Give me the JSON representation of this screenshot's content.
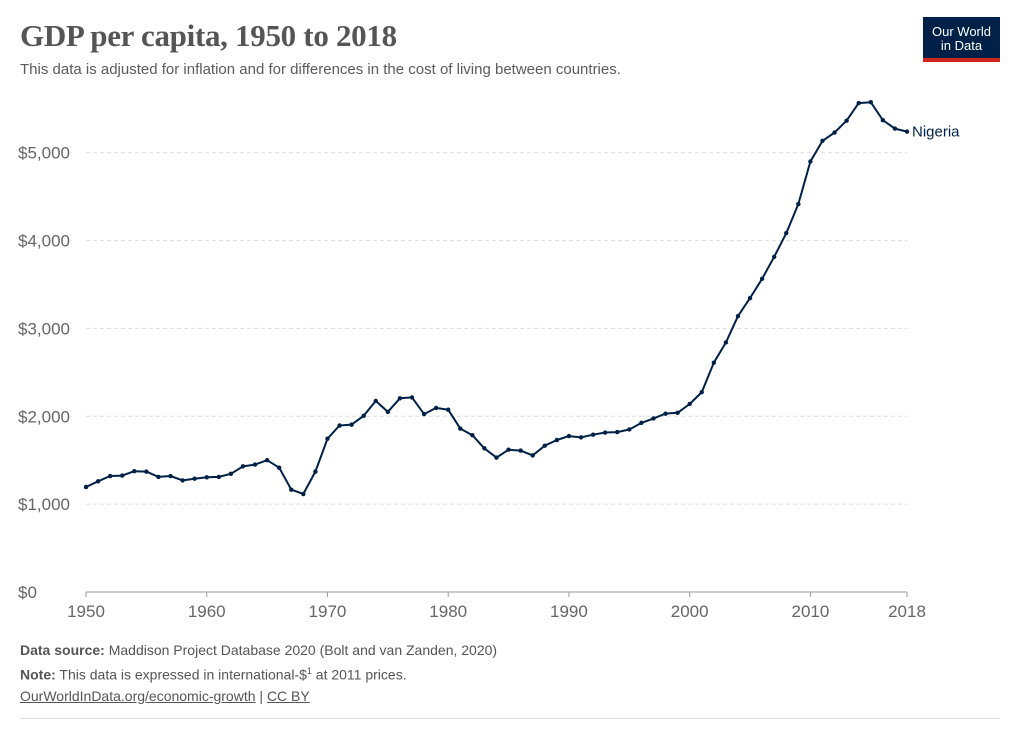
{
  "header": {
    "title": "GDP per capita, 1950 to 2018",
    "subtitle": "This data is adjusted for inflation and for differences in the cost of living between countries."
  },
  "logo": {
    "line1": "Our World",
    "line2": "in Data"
  },
  "footer": {
    "source_label": "Data source:",
    "source_text": "Maddison Project Database 2020 (Bolt and van Zanden, 2020)",
    "note_label": "Note:",
    "note_text_before": "This data is expressed in international-$",
    "note_sup": "1",
    "note_text_after": " at 2011 prices.",
    "link_text": "OurWorldInData.org/economic-growth",
    "separator": "|",
    "license_text": "CC BY"
  },
  "colors": {
    "line": "#002147",
    "grid": "#dddddd",
    "logo_bg": "#002147",
    "logo_accent": "#ce261e"
  },
  "chart_data": {
    "type": "line",
    "title": "GDP per capita, 1950 to 2018",
    "xlim": [
      1950,
      2018
    ],
    "ylim": [
      0,
      5600
    ],
    "x_ticks": [
      1950,
      1960,
      1970,
      1980,
      1990,
      2000,
      2010,
      2018
    ],
    "y_ticks": [
      0,
      1000,
      2000,
      3000,
      4000,
      5000
    ],
    "y_tick_labels": [
      "$0",
      "$1,000",
      "$2,000",
      "$3,000",
      "$4,000",
      "$5,000"
    ],
    "grid": "horizontal dashed",
    "series": [
      {
        "name": "Nigeria",
        "x": [
          1950,
          1951,
          1952,
          1953,
          1954,
          1955,
          1956,
          1957,
          1958,
          1959,
          1960,
          1961,
          1962,
          1963,
          1964,
          1965,
          1966,
          1967,
          1968,
          1969,
          1970,
          1971,
          1972,
          1973,
          1974,
          1975,
          1976,
          1977,
          1978,
          1979,
          1980,
          1981,
          1982,
          1983,
          1984,
          1985,
          1986,
          1987,
          1988,
          1989,
          1990,
          1991,
          1992,
          1993,
          1994,
          1995,
          1996,
          1997,
          1998,
          1999,
          2000,
          2001,
          2002,
          2003,
          2004,
          2005,
          2006,
          2007,
          2008,
          2009,
          2010,
          2011,
          2012,
          2013,
          2014,
          2015,
          2016,
          2017,
          2018
        ],
        "values": [
          1195,
          1260,
          1320,
          1325,
          1375,
          1370,
          1310,
          1320,
          1270,
          1290,
          1305,
          1310,
          1345,
          1430,
          1450,
          1500,
          1415,
          1165,
          1115,
          1370,
          1745,
          1895,
          1905,
          2005,
          2175,
          2050,
          2205,
          2215,
          2025,
          2095,
          2075,
          1860,
          1785,
          1635,
          1530,
          1620,
          1610,
          1555,
          1665,
          1730,
          1775,
          1760,
          1790,
          1815,
          1820,
          1850,
          1925,
          1975,
          2030,
          2040,
          2140,
          2275,
          2610,
          2840,
          3140,
          3345,
          3565,
          3815,
          4085,
          4415,
          4900,
          5135,
          5230,
          5365,
          5565,
          5575,
          5370,
          5275,
          5240
        ]
      }
    ]
  }
}
